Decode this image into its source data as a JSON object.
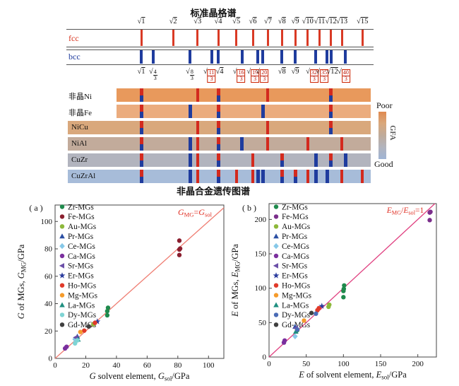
{
  "lattice": {
    "title": "标准晶格谱",
    "fcc_label": "fcc",
    "bcc_label": "bcc",
    "fcc_color": "#d93a25",
    "bcc_color": "#1f3c9e",
    "fcc_lines": [
      {
        "v": 1,
        "label": "1"
      },
      {
        "v": 2,
        "label": "2"
      },
      {
        "v": 3,
        "label": "3"
      },
      {
        "v": 4,
        "label": "4"
      },
      {
        "v": 5,
        "label": "5"
      },
      {
        "v": 6,
        "label": "6"
      },
      {
        "v": 7,
        "label": "7"
      },
      {
        "v": 8,
        "label": "8"
      },
      {
        "v": 9,
        "label": "9"
      },
      {
        "v": 10,
        "label": "10"
      },
      {
        "v": 11,
        "label": "11"
      },
      {
        "v": 12,
        "label": "12"
      },
      {
        "v": 13,
        "label": "13"
      },
      {
        "v": 15,
        "label": "15"
      }
    ],
    "bcc_lines": [
      {
        "v": 1,
        "plain": "1",
        "boxed": false
      },
      {
        "v": 1.3333,
        "num": "4",
        "den": "3",
        "boxed": false
      },
      {
        "v": 2.6667,
        "num": "8",
        "den": "3",
        "boxed": false
      },
      {
        "v": 3.6667,
        "num": "11",
        "den": "3",
        "boxed": true,
        "dx": -3
      },
      {
        "v": 4,
        "plain": "4",
        "boxed": false,
        "dx": 2
      },
      {
        "v": 5.3333,
        "num": "16",
        "den": "3",
        "boxed": true,
        "dx": -4
      },
      {
        "v": 6.3333,
        "num": "19",
        "den": "3",
        "boxed": true,
        "dx": -7
      },
      {
        "v": 6.6667,
        "num": "20",
        "den": "3",
        "boxed": true,
        "dx": -1
      },
      {
        "v": 8,
        "plain": "8",
        "boxed": false
      },
      {
        "v": 9,
        "plain": "9",
        "boxed": false
      },
      {
        "v": 10.6667,
        "num": "32",
        "den": "3",
        "boxed": true,
        "dx": -5
      },
      {
        "v": 11.6667,
        "num": "35",
        "den": "3",
        "boxed": true,
        "dx": -7
      },
      {
        "v": 12,
        "plain": "12",
        "boxed": false,
        "dx": 2
      },
      {
        "v": 13.3333,
        "num": "40",
        "den": "3",
        "boxed": true,
        "dx": -2
      }
    ]
  },
  "genetic": {
    "caption": "非晶合金遗传图谱",
    "tick_red": "#d32a1e",
    "tick_blue": "#1f3c9e",
    "rows": [
      {
        "label": "非晶Ni",
        "color": "#e8995c",
        "outside": true,
        "ticks": [
          {
            "v": 1,
            "t": "both"
          },
          {
            "v": 3,
            "t": "fcc"
          },
          {
            "v": 4,
            "t": "both"
          },
          {
            "v": 7,
            "t": "fcc"
          },
          {
            "v": 12,
            "t": "both"
          }
        ]
      },
      {
        "label": "非晶Fe",
        "color": "#ebac7e",
        "outside": true,
        "ticks": [
          {
            "v": 1,
            "t": "both"
          },
          {
            "v": 2.6667,
            "t": "bcc"
          },
          {
            "v": 4,
            "t": "both"
          },
          {
            "v": 6.6667,
            "t": "bcc"
          },
          {
            "v": 12,
            "t": "both"
          }
        ]
      },
      {
        "label": "NiCu",
        "color": "#d9a87c",
        "outside": false,
        "ticks": [
          {
            "v": 1,
            "t": "both"
          },
          {
            "v": 3,
            "t": "fcc"
          },
          {
            "v": 4,
            "t": "both"
          },
          {
            "v": 7,
            "t": "fcc"
          },
          {
            "v": 12,
            "t": "both"
          }
        ]
      },
      {
        "label": "NiAl",
        "color": "#c2ab9b",
        "outside": false,
        "ticks": [
          {
            "v": 1,
            "t": "both"
          },
          {
            "v": 2.6667,
            "t": "bcc"
          },
          {
            "v": 3,
            "t": "fcc"
          },
          {
            "v": 4,
            "t": "both"
          },
          {
            "v": 5.3333,
            "t": "bcc"
          },
          {
            "v": 7,
            "t": "fcc"
          },
          {
            "v": 10,
            "t": "fcc"
          },
          {
            "v": 13,
            "t": "fcc"
          }
        ]
      },
      {
        "label": "CuZr",
        "color": "#b2b4be",
        "outside": false,
        "ticks": [
          {
            "v": 1,
            "t": "both"
          },
          {
            "v": 2.6667,
            "t": "bcc"
          },
          {
            "v": 3,
            "t": "fcc"
          },
          {
            "v": 4,
            "t": "both"
          },
          {
            "v": 6,
            "t": "fcc"
          },
          {
            "v": 8,
            "t": "both"
          },
          {
            "v": 10.6667,
            "t": "bcc"
          },
          {
            "v": 12,
            "t": "both"
          },
          {
            "v": 13.3333,
            "t": "bcc"
          }
        ]
      },
      {
        "label": "CuZrAl",
        "color": "#a7bcd9",
        "outside": false,
        "ticks": [
          {
            "v": 1,
            "t": "both"
          },
          {
            "v": 2.6667,
            "t": "bcc"
          },
          {
            "v": 3,
            "t": "fcc"
          },
          {
            "v": 4,
            "t": "both"
          },
          {
            "v": 5,
            "t": "fcc"
          },
          {
            "v": 6,
            "t": "fcc"
          },
          {
            "v": 6.3333,
            "t": "bcc"
          },
          {
            "v": 6.6667,
            "t": "bcc"
          },
          {
            "v": 8,
            "t": "both"
          },
          {
            "v": 9,
            "t": "both"
          },
          {
            "v": 10,
            "t": "fcc"
          },
          {
            "v": 10.6667,
            "t": "bcc"
          },
          {
            "v": 11.6667,
            "t": "bcc"
          },
          {
            "v": 13,
            "t": "fcc"
          },
          {
            "v": 15,
            "t": "fcc"
          }
        ]
      }
    ],
    "colorbar": {
      "top_label": "Poor",
      "bottom_label": "Good",
      "axis_label": "GFA",
      "colors": [
        "#e08a50",
        "#d9a87c",
        "#bfab9b",
        "#b2b4be",
        "#9fb4d4"
      ]
    }
  },
  "chart_data": [
    {
      "type": "scatter",
      "tag": "( a )",
      "xlabel": [
        {
          "t": "G",
          "i": 1
        },
        {
          "t": " solvent element, "
        },
        {
          "t": "G",
          "i": 1
        },
        {
          "t": "sol",
          "sub": 1
        },
        {
          "t": "/GPa"
        }
      ],
      "ylabel": [
        {
          "t": "G",
          "i": 1
        },
        {
          "t": " of MGs, "
        },
        {
          "t": "G",
          "i": 1
        },
        {
          "t": "MG",
          "sub": 1
        },
        {
          "t": "/GPa"
        }
      ],
      "line_label": [
        {
          "t": "G",
          "i": 1
        },
        {
          "t": "MG",
          "sub": 1
        },
        {
          "t": "="
        },
        {
          "t": "G",
          "i": 1
        },
        {
          "t": "sol",
          "sub": 1
        }
      ],
      "line_color": "#ef7d72",
      "label_color": "#e03025",
      "xlim": [
        0,
        110
      ],
      "ylim": [
        0,
        112
      ],
      "xticks": [
        0,
        20,
        40,
        60,
        80,
        100
      ],
      "yticks": [
        0,
        20,
        40,
        60,
        80,
        100
      ],
      "series": [
        {
          "name": "Zr-MGs",
          "marker": "circle",
          "color": "#1f8a4c",
          "points": [
            [
              34,
              31.5
            ],
            [
              34,
              34.5
            ],
            [
              34.5,
              37
            ]
          ]
        },
        {
          "name": "Fe-MGs",
          "marker": "circle",
          "color": "#8b1f2f",
          "points": [
            [
              81,
              75.5
            ],
            [
              81,
              79.5
            ],
            [
              81.5,
              80.2
            ],
            [
              81,
              86
            ]
          ]
        },
        {
          "name": "Au-MGs",
          "marker": "circle",
          "color": "#8db83a",
          "points": [
            [
              25,
              25
            ]
          ]
        },
        {
          "name": "Pr-MGs",
          "marker": "triangle",
          "color": "#2b4fa3",
          "points": [
            [
              14.5,
              16
            ]
          ]
        },
        {
          "name": "Ce-MGs",
          "marker": "diamond",
          "color": "#86c8e8",
          "points": [
            [
              13,
              14
            ]
          ]
        },
        {
          "name": "Ca-MGs",
          "marker": "circle",
          "color": "#7b2f9e",
          "points": [
            [
              6.5,
              7.3
            ],
            [
              7.5,
              8.5
            ]
          ]
        },
        {
          "name": "Sr-MGs",
          "marker": "tri-left",
          "color": "#6b4fa8",
          "points": [
            [
              13.5,
              15.3
            ]
          ]
        },
        {
          "name": "Er-MGs",
          "marker": "star",
          "color": "#2b3c9e",
          "points": [
            [
              27.5,
              26.9
            ]
          ]
        },
        {
          "name": "Ho-MGs",
          "marker": "circle",
          "color": "#e03a2a",
          "points": [
            [
              19,
              20.3
            ],
            [
              26,
              26
            ]
          ]
        },
        {
          "name": "Mg-MGs",
          "marker": "circle",
          "color": "#f59b2c",
          "points": [
            [
              16.5,
              19.3
            ]
          ]
        },
        {
          "name": "La-MGs",
          "marker": "triangle",
          "color": "#1f8f80",
          "points": [
            [
              15,
              13.8
            ]
          ]
        },
        {
          "name": "Dy-MGs",
          "marker": "circle",
          "color": "#7fd4d4",
          "points": [
            [
              13,
              11
            ],
            [
              14.5,
              13.2
            ]
          ]
        },
        {
          "name": "Gd-MGs",
          "marker": "circle",
          "color": "#3f3f3f",
          "points": [
            [
              22,
              23.3
            ]
          ]
        }
      ]
    },
    {
      "type": "scatter",
      "tag": "( b )",
      "xlabel": [
        {
          "t": "E",
          "i": 1
        },
        {
          "t": " of solvent element, "
        },
        {
          "t": "E",
          "i": 1
        },
        {
          "t": "sol",
          "sub": 1
        },
        {
          "t": "/GPa"
        }
      ],
      "ylabel": [
        {
          "t": "E",
          "i": 1
        },
        {
          "t": " of MGs, "
        },
        {
          "t": "E",
          "i": 1
        },
        {
          "t": "MG",
          "sub": 1
        },
        {
          "t": "/GPa"
        }
      ],
      "line_label": [
        {
          "t": "E",
          "i": 1
        },
        {
          "t": "MG",
          "sub": 1
        },
        {
          "t": "/"
        },
        {
          "t": "E",
          "i": 1
        },
        {
          "t": "sol",
          "sub": 1
        },
        {
          "t": "=1"
        }
      ],
      "line_color": "#e04080",
      "label_color": "#e03025",
      "xlim": [
        0,
        225
      ],
      "ylim": [
        0,
        223
      ],
      "xticks": [
        0,
        50,
        100,
        150,
        200
      ],
      "yticks": [
        0,
        50,
        100,
        150,
        200
      ],
      "series": [
        {
          "name": "Zr-MGs",
          "marker": "circle",
          "color": "#1f8a4c",
          "points": [
            [
              38,
              39
            ],
            [
              100,
              87
            ],
            [
              100,
              96
            ],
            [
              100.5,
              99
            ],
            [
              101,
              104
            ]
          ]
        },
        {
          "name": "Fe-MGs",
          "marker": "circle",
          "color": "#7b2e8b",
          "points": [
            [
              216,
              199
            ],
            [
              216,
              210
            ],
            [
              217,
              211
            ]
          ]
        },
        {
          "name": "Au-MGs",
          "marker": "circle",
          "color": "#8db83a",
          "points": [
            [
              80,
              73
            ],
            [
              81,
              76
            ]
          ]
        },
        {
          "name": "Pr-MGs",
          "marker": "triangle",
          "color": "#2b4fa3",
          "points": [
            [
              35,
              44
            ]
          ]
        },
        {
          "name": "Ce-MGs",
          "marker": "diamond",
          "color": "#86c8e8",
          "points": [
            [
              35,
              30
            ]
          ]
        },
        {
          "name": "Ca-MGs",
          "marker": "circle",
          "color": "#7b2f9e",
          "points": [
            [
              20,
              21
            ],
            [
              21,
              24
            ]
          ]
        },
        {
          "name": "Sr-MGs",
          "marker": "tri-left",
          "color": "#6b4fa8",
          "points": [
            [
              36,
              42
            ]
          ]
        },
        {
          "name": "Er-MGs",
          "marker": "star",
          "color": "#2b3c9e",
          "points": [
            [
              71,
              74
            ]
          ]
        },
        {
          "name": "Ho-MGs",
          "marker": "circle",
          "color": "#e03a2a",
          "points": [
            [
              65,
              68
            ],
            [
              67,
              71
            ]
          ]
        },
        {
          "name": "Mg-MGs",
          "marker": "circle",
          "color": "#f59b2c",
          "points": [
            [
              47,
              53
            ]
          ]
        },
        {
          "name": "La-MGs",
          "marker": "triangle",
          "color": "#1f8f80",
          "points": [
            [
              36,
              37
            ]
          ]
        },
        {
          "name": "Dy-MGs",
          "marker": "circle",
          "color": "#4a6bb5",
          "points": [
            [
              38,
              40
            ],
            [
              63,
              63
            ]
          ]
        },
        {
          "name": "Gd-MGs",
          "marker": "circle",
          "color": "#3f3f3f",
          "points": [
            [
              57,
              64
            ]
          ]
        }
      ]
    }
  ]
}
